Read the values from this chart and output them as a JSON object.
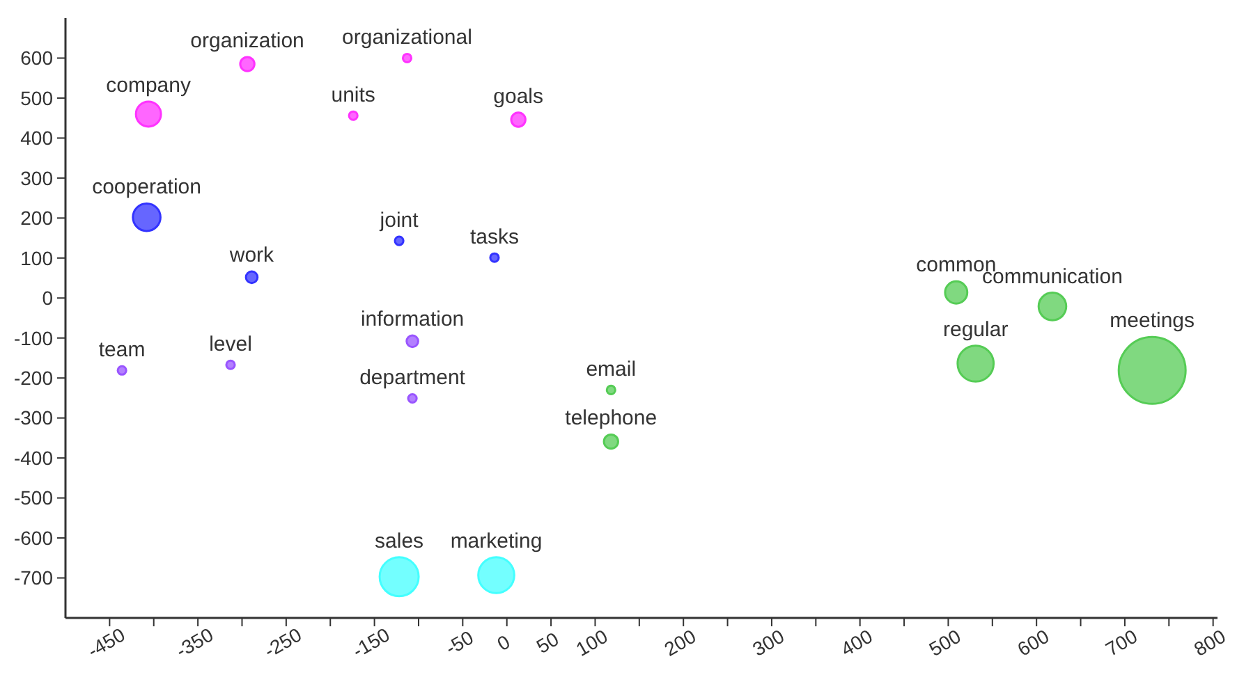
{
  "chart_data": {
    "type": "bubble",
    "xlim": [
      -500,
      805
    ],
    "ylim": [
      -800,
      700
    ],
    "xticks": [
      -450,
      {
        "value": -400,
        "label": null
      },
      -350,
      {
        "value": -300,
        "label": null
      },
      -250,
      {
        "value": -200,
        "label": null
      },
      -150,
      {
        "value": -100,
        "label": null
      },
      -50,
      0,
      50,
      100,
      {
        "value": 150,
        "label": null
      },
      200,
      {
        "value": 250,
        "label": null
      },
      300,
      {
        "value": 350,
        "label": null
      },
      400,
      {
        "value": 450,
        "label": null
      },
      500,
      {
        "value": 550,
        "label": null
      },
      600,
      {
        "value": 650,
        "label": null
      },
      700,
      {
        "value": 750,
        "label": null
      },
      800
    ],
    "yticks": [
      -700,
      -600,
      -500,
      -400,
      -300,
      -200,
      -100,
      0,
      100,
      200,
      300,
      400,
      500,
      600
    ],
    "series": [
      {
        "color": "#ff33ff",
        "x": [
          -406,
          -294,
          -113,
          -174,
          13
        ],
        "values": [
          460,
          585,
          600,
          456,
          446
        ],
        "sizes": [
          0.14,
          0.045,
          0.016,
          0.016,
          0.045
        ]
      },
      {
        "color": "#3333ff",
        "x": [
          -408,
          -122,
          -14,
          -289
        ],
        "values": [
          202,
          143,
          101,
          52
        ],
        "sizes": [
          0.17,
          0.016,
          0.016,
          0.03
        ]
      },
      {
        "color": "#9955ff",
        "x": [
          -107,
          -436,
          -313,
          -107
        ],
        "values": [
          -108,
          -181,
          -167,
          -251
        ],
        "sizes": [
          0.03,
          0.016,
          0.016,
          0.016
        ]
      },
      {
        "color": "#55cc55",
        "x": [
          118,
          118,
          509,
          618,
          531,
          731
        ],
        "values": [
          -230,
          -359,
          14,
          -21,
          -164,
          -181
        ],
        "sizes": [
          0.016,
          0.045,
          0.11,
          0.17,
          0.29,
          1
        ]
      },
      {
        "color": "#44ffff",
        "x": [
          -122,
          -12
        ],
        "values": [
          -697,
          -693
        ],
        "sizes": [
          0.34,
          0.29
        ]
      }
    ],
    "annotations": [
      {
        "text": "company",
        "x": -406,
        "y": 460
      },
      {
        "text": "organization",
        "x": -294,
        "y": 585
      },
      {
        "text": "organizational",
        "x": -113,
        "y": 600
      },
      {
        "text": "units",
        "x": -174,
        "y": 456
      },
      {
        "text": "goals",
        "x": 13,
        "y": 446
      },
      {
        "text": "cooperation",
        "x": -408,
        "y": 202
      },
      {
        "text": "joint",
        "x": -122,
        "y": 143
      },
      {
        "text": "tasks",
        "x": -14,
        "y": 101
      },
      {
        "text": "work",
        "x": -289,
        "y": 52
      },
      {
        "text": "information",
        "x": -107,
        "y": -108
      },
      {
        "text": "team",
        "x": -436,
        "y": -181
      },
      {
        "text": "level",
        "x": -313,
        "y": -167
      },
      {
        "text": "department",
        "x": -107,
        "y": -251
      },
      {
        "text": "email",
        "x": 118,
        "y": -230
      },
      {
        "text": "telephone",
        "x": 118,
        "y": -359
      },
      {
        "text": "common",
        "x": 509,
        "y": 14
      },
      {
        "text": "communication",
        "x": 618,
        "y": -21
      },
      {
        "text": "regular",
        "x": 531,
        "y": -164
      },
      {
        "text": "meetings",
        "x": 731,
        "y": -181
      },
      {
        "text": "sales",
        "x": -122,
        "y": -697
      },
      {
        "text": "marketing",
        "x": -12,
        "y": -693
      }
    ]
  }
}
